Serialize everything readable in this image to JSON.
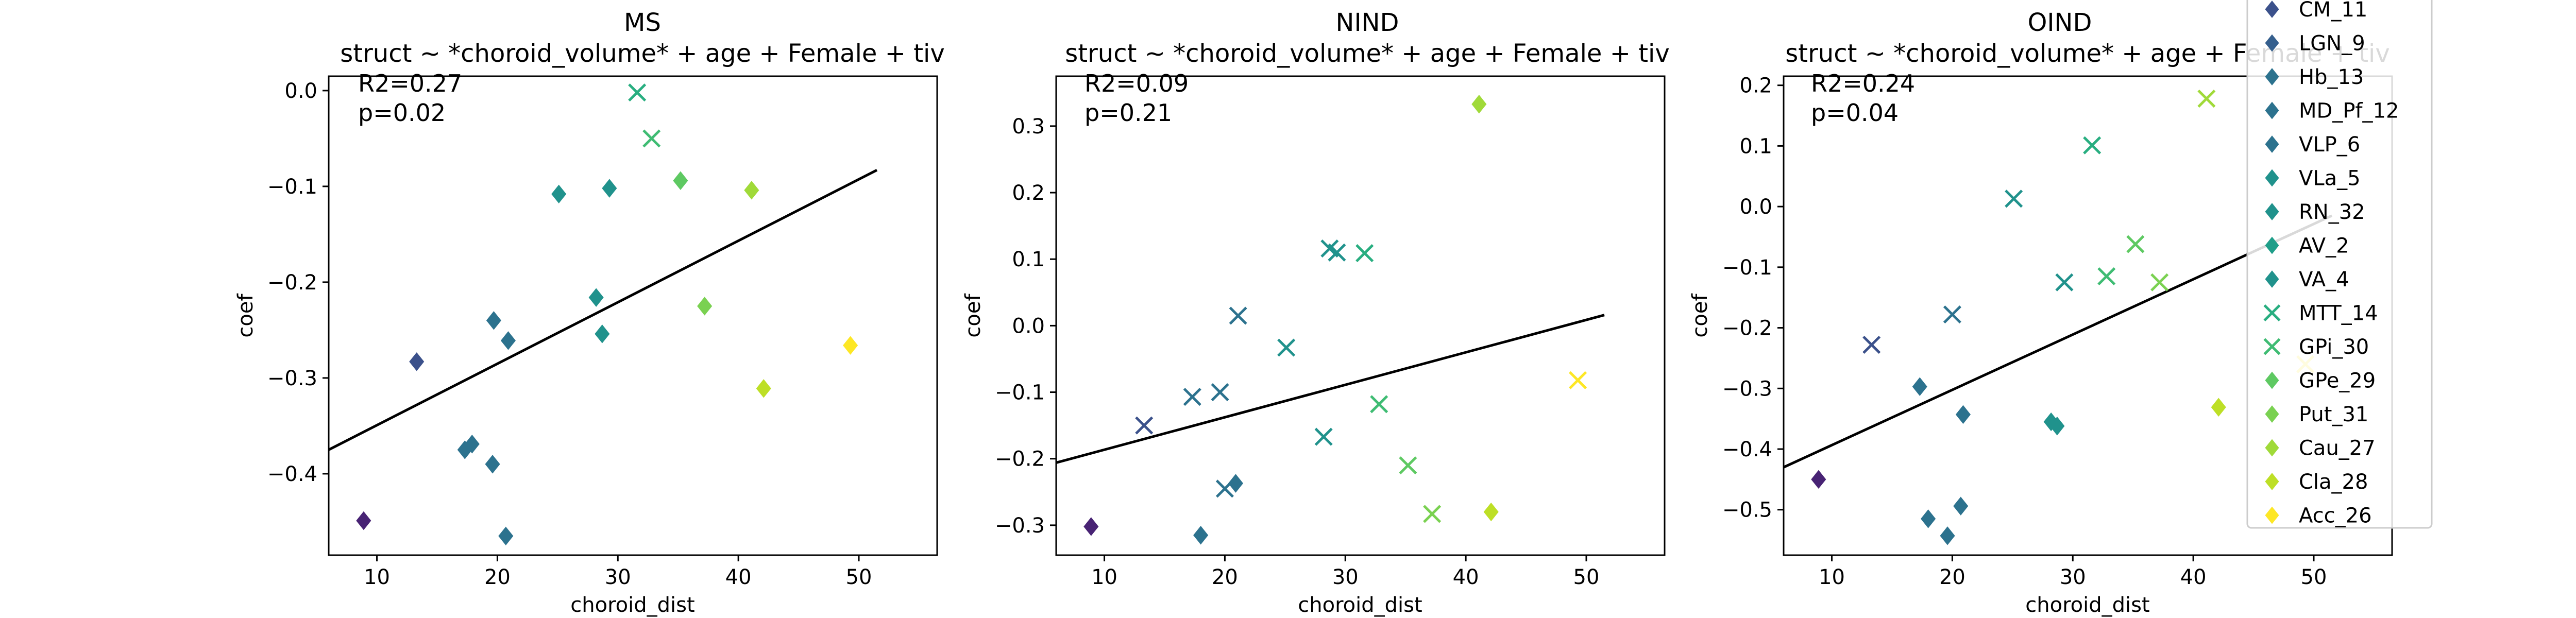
{
  "chart_data": [
    {
      "type": "scatter",
      "title": "MS",
      "subtitle": "struct ~ *choroid_volume* + age + Female + tiv",
      "xlabel": "choroid_dist",
      "ylabel": "coef",
      "xlim": [
        6,
        56.5
      ],
      "ylim": [
        -0.485,
        0.015
      ],
      "xticks": [
        10,
        20,
        30,
        40,
        50
      ],
      "yticks": [
        -0.4,
        -0.3,
        -0.2,
        -0.1,
        0.0
      ],
      "annotations": [
        "R2=0.27",
        "p=0.02"
      ],
      "regression_line": {
        "x": [
          6,
          51.5
        ],
        "y": [
          -0.375,
          -0.083
        ]
      },
      "points": [
        {
          "x": 8.9,
          "y": -0.449,
          "marker": "diamond",
          "color": "#482374"
        },
        {
          "x": 13.3,
          "y": -0.283,
          "marker": "diamond",
          "color": "#3b518b"
        },
        {
          "x": 17.3,
          "y": -0.375,
          "marker": "diamond",
          "color": "#2c728e"
        },
        {
          "x": 17.9,
          "y": -0.369,
          "marker": "diamond",
          "color": "#2c728e"
        },
        {
          "x": 19.6,
          "y": -0.39,
          "marker": "diamond",
          "color": "#2c728e"
        },
        {
          "x": 20.7,
          "y": -0.465,
          "marker": "diamond",
          "color": "#2c728e"
        },
        {
          "x": 19.7,
          "y": -0.24,
          "marker": "diamond",
          "color": "#2c728e"
        },
        {
          "x": 20.9,
          "y": -0.261,
          "marker": "diamond",
          "color": "#2c728e"
        },
        {
          "x": 25.1,
          "y": -0.108,
          "marker": "diamond",
          "color": "#20928c"
        },
        {
          "x": 28.2,
          "y": -0.216,
          "marker": "diamond",
          "color": "#20928c"
        },
        {
          "x": 28.7,
          "y": -0.254,
          "marker": "diamond",
          "color": "#20928c"
        },
        {
          "x": 29.3,
          "y": -0.102,
          "marker": "diamond",
          "color": "#20928c"
        },
        {
          "x": 31.6,
          "y": -0.002,
          "marker": "x",
          "color": "#28ae80"
        },
        {
          "x": 32.8,
          "y": -0.05,
          "marker": "x",
          "color": "#3fbc73"
        },
        {
          "x": 35.2,
          "y": -0.094,
          "marker": "diamond",
          "color": "#5ec962"
        },
        {
          "x": 37.2,
          "y": -0.225,
          "marker": "diamond",
          "color": "#7ad151"
        },
        {
          "x": 41.1,
          "y": -0.104,
          "marker": "diamond",
          "color": "#a0da39"
        },
        {
          "x": 42.1,
          "y": -0.311,
          "marker": "diamond",
          "color": "#bddf26"
        },
        {
          "x": 49.3,
          "y": -0.266,
          "marker": "diamond",
          "color": "#fde725"
        }
      ]
    },
    {
      "type": "scatter",
      "title": "NIND",
      "subtitle": "struct ~ *choroid_volume* + age + Female + tiv",
      "xlabel": "choroid_dist",
      "ylabel": "coef",
      "xlim": [
        6,
        56.5
      ],
      "ylim": [
        -0.345,
        0.375
      ],
      "xticks": [
        10,
        20,
        30,
        40,
        50
      ],
      "yticks": [
        -0.3,
        -0.2,
        -0.1,
        0.0,
        0.1,
        0.2,
        0.3
      ],
      "annotations": [
        "R2=0.09",
        "p=0.21"
      ],
      "regression_line": {
        "x": [
          6,
          51.5
        ],
        "y": [
          -0.206,
          0.016
        ]
      },
      "points": [
        {
          "x": 8.9,
          "y": -0.302,
          "marker": "diamond",
          "color": "#482374"
        },
        {
          "x": 13.3,
          "y": -0.15,
          "marker": "x",
          "color": "#3b518b"
        },
        {
          "x": 17.3,
          "y": -0.107,
          "marker": "x",
          "color": "#2c728e"
        },
        {
          "x": 18.0,
          "y": -0.315,
          "marker": "diamond",
          "color": "#2c728e"
        },
        {
          "x": 19.6,
          "y": -0.1,
          "marker": "x",
          "color": "#2c728e"
        },
        {
          "x": 20.0,
          "y": -0.245,
          "marker": "x",
          "color": "#2c728e"
        },
        {
          "x": 20.9,
          "y": -0.237,
          "marker": "diamond",
          "color": "#2c728e"
        },
        {
          "x": 21.1,
          "y": 0.015,
          "marker": "x",
          "color": "#2c728e"
        },
        {
          "x": 25.1,
          "y": -0.033,
          "marker": "x",
          "color": "#20928c"
        },
        {
          "x": 28.2,
          "y": -0.167,
          "marker": "x",
          "color": "#20928c"
        },
        {
          "x": 28.7,
          "y": 0.116,
          "marker": "x",
          "color": "#20928c"
        },
        {
          "x": 29.3,
          "y": 0.11,
          "marker": "x",
          "color": "#20928c"
        },
        {
          "x": 31.6,
          "y": 0.109,
          "marker": "x",
          "color": "#28ae80"
        },
        {
          "x": 32.8,
          "y": -0.118,
          "marker": "x",
          "color": "#3fbc73"
        },
        {
          "x": 35.2,
          "y": -0.21,
          "marker": "x",
          "color": "#5ec962"
        },
        {
          "x": 37.2,
          "y": -0.283,
          "marker": "x",
          "color": "#7ad151"
        },
        {
          "x": 41.1,
          "y": 0.333,
          "marker": "diamond",
          "color": "#a0da39"
        },
        {
          "x": 42.1,
          "y": -0.28,
          "marker": "diamond",
          "color": "#bddf26"
        },
        {
          "x": 49.3,
          "y": -0.082,
          "marker": "x",
          "color": "#fde725"
        }
      ]
    },
    {
      "type": "scatter",
      "title": "OIND",
      "subtitle": "struct ~ *choroid_volume* + age + Female + tiv",
      "xlabel": "choroid_dist",
      "ylabel": "coef",
      "xlim": [
        6,
        56.5
      ],
      "ylim": [
        -0.575,
        0.215
      ],
      "xticks": [
        10,
        20,
        30,
        40,
        50
      ],
      "yticks": [
        -0.5,
        -0.4,
        -0.3,
        -0.2,
        -0.1,
        0.0,
        0.1,
        0.2
      ],
      "annotations": [
        "R2=0.24",
        "p=0.04"
      ],
      "regression_line": {
        "x": [
          6,
          51.5
        ],
        "y": [
          -0.43,
          -0.015
        ]
      },
      "points": [
        {
          "x": 8.9,
          "y": -0.45,
          "marker": "diamond",
          "color": "#482374"
        },
        {
          "x": 13.3,
          "y": -0.228,
          "marker": "x",
          "color": "#3b518b"
        },
        {
          "x": 17.3,
          "y": -0.297,
          "marker": "diamond",
          "color": "#2c728e"
        },
        {
          "x": 18.0,
          "y": -0.515,
          "marker": "diamond",
          "color": "#2c728e"
        },
        {
          "x": 19.6,
          "y": -0.543,
          "marker": "diamond",
          "color": "#2c728e"
        },
        {
          "x": 20.0,
          "y": -0.178,
          "marker": "x",
          "color": "#2c728e"
        },
        {
          "x": 20.7,
          "y": -0.494,
          "marker": "diamond",
          "color": "#2c728e"
        },
        {
          "x": 20.9,
          "y": -0.343,
          "marker": "diamond",
          "color": "#2c728e"
        },
        {
          "x": 25.1,
          "y": 0.013,
          "marker": "x",
          "color": "#20928c"
        },
        {
          "x": 28.2,
          "y": -0.355,
          "marker": "diamond",
          "color": "#20928c"
        },
        {
          "x": 28.7,
          "y": -0.362,
          "marker": "diamond",
          "color": "#20928c"
        },
        {
          "x": 29.3,
          "y": -0.125,
          "marker": "x",
          "color": "#20928c"
        },
        {
          "x": 31.6,
          "y": 0.101,
          "marker": "x",
          "color": "#28ae80"
        },
        {
          "x": 32.8,
          "y": -0.115,
          "marker": "x",
          "color": "#3fbc73"
        },
        {
          "x": 35.2,
          "y": -0.062,
          "marker": "x",
          "color": "#5ec962"
        },
        {
          "x": 37.2,
          "y": -0.125,
          "marker": "x",
          "color": "#7ad151"
        },
        {
          "x": 41.1,
          "y": 0.178,
          "marker": "x",
          "color": "#a0da39"
        },
        {
          "x": 42.1,
          "y": -0.331,
          "marker": "diamond",
          "color": "#bddf26"
        },
        {
          "x": 49.3,
          "y": -0.26,
          "marker": "x",
          "color": "#fde725"
        }
      ]
    }
  ],
  "legend": {
    "placement": "upper-right, extending above the figure",
    "entries": [
      {
        "label": "CM_11",
        "marker": "diamond",
        "color": "#3b518b"
      },
      {
        "label": "LGN_9",
        "marker": "diamond",
        "color": "#355f8d"
      },
      {
        "label": "Hb_13",
        "marker": "diamond",
        "color": "#2c728e"
      },
      {
        "label": "MD_Pf_12",
        "marker": "diamond",
        "color": "#2c728e"
      },
      {
        "label": "VLP_6",
        "marker": "diamond",
        "color": "#2c728e"
      },
      {
        "label": "VLa_5",
        "marker": "diamond",
        "color": "#20928c"
      },
      {
        "label": "RN_32",
        "marker": "diamond",
        "color": "#20928c"
      },
      {
        "label": "AV_2",
        "marker": "diamond",
        "color": "#1f9e89"
      },
      {
        "label": "VA_4",
        "marker": "diamond",
        "color": "#20928c"
      },
      {
        "label": "MTT_14",
        "marker": "x",
        "color": "#28ae80"
      },
      {
        "label": "GPi_30",
        "marker": "x",
        "color": "#3fbc73"
      },
      {
        "label": "GPe_29",
        "marker": "diamond",
        "color": "#5ec962"
      },
      {
        "label": "Put_31",
        "marker": "diamond",
        "color": "#7ad151"
      },
      {
        "label": "Cau_27",
        "marker": "diamond",
        "color": "#a0da39"
      },
      {
        "label": "Cla_28",
        "marker": "diamond",
        "color": "#bddf26"
      },
      {
        "label": "Acc_26",
        "marker": "diamond",
        "color": "#fde725"
      }
    ]
  }
}
